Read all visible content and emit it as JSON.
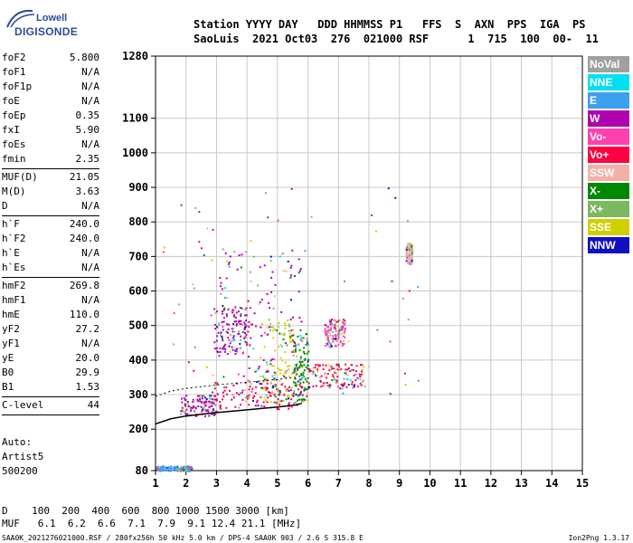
{
  "logo": {
    "line1": "Lowell",
    "line2": "DIGISONDE"
  },
  "header": {
    "line1": "Station YYYY DAY   DDD HHMMSS P1   FFS  S  AXN  PPS  IGA  PS",
    "line2": "SaoLuis  2021 Oct03  276  021000 RSF      1  715  100  00-  11"
  },
  "params": {
    "group1": [
      {
        "k": "foF2",
        "v": "5.800"
      },
      {
        "k": "foF1",
        "v": "N/A"
      },
      {
        "k": "foF1p",
        "v": "N/A"
      },
      {
        "k": "foE",
        "v": "N/A"
      },
      {
        "k": "foEp",
        "v": "0.35"
      },
      {
        "k": "fxI",
        "v": "5.90"
      },
      {
        "k": "foEs",
        "v": "N/A"
      },
      {
        "k": "fmin",
        "v": "2.35"
      }
    ],
    "group2": [
      {
        "k": "MUF(D)",
        "v": "21.05"
      },
      {
        "k": "M(D)",
        "v": "3.63"
      },
      {
        "k": "D",
        "v": "N/A"
      }
    ],
    "group3": [
      {
        "k": "h`F",
        "v": "240.0"
      },
      {
        "k": "h`F2",
        "v": "240.0"
      },
      {
        "k": "h`E",
        "v": "N/A"
      },
      {
        "k": "h`Es",
        "v": "N/A"
      }
    ],
    "group4": [
      {
        "k": "hmF2",
        "v": "269.8"
      },
      {
        "k": "hmF1",
        "v": "N/A"
      },
      {
        "k": "hmE",
        "v": "110.0"
      },
      {
        "k": "yF2",
        "v": "27.2"
      },
      {
        "k": "yF1",
        "v": "N/A"
      },
      {
        "k": "yE",
        "v": "20.0"
      },
      {
        "k": "B0",
        "v": "29.9"
      },
      {
        "k": "B1",
        "v": "1.53"
      }
    ],
    "group5": [
      {
        "k": "C-level",
        "v": "44"
      }
    ]
  },
  "auto": {
    "line1": "Auto:",
    "line2": "Artist5",
    "line3": "500200"
  },
  "legend": [
    {
      "label": "NoVal",
      "color": "#a0a0a0"
    },
    {
      "label": "NNE",
      "color": "#00e0f0"
    },
    {
      "label": "E",
      "color": "#3ca0f0"
    },
    {
      "label": "W",
      "color": "#b000b0"
    },
    {
      "label": "Vo-",
      "color": "#ff40b0"
    },
    {
      "label": "Vo+",
      "color": "#ff0040"
    },
    {
      "label": "SSW",
      "color": "#f4b0a8"
    },
    {
      "label": "X-",
      "color": "#008800"
    },
    {
      "label": "X+",
      "color": "#7cb860"
    },
    {
      "label": "SSE",
      "color": "#d0d000"
    },
    {
      "label": "NNW",
      "color": "#1010c0"
    }
  ],
  "footer": {
    "line1": "D    100  200  400  600  800 1000 1500 3000 [km]",
    "line2": "MUF   6.1  6.2  6.6  7.1  7.9  9.1 12.4 21.1 [MHz]",
    "line3": "SAA0K_2021276021000.RSF / 280fx256h 50 kHz 5.0 km / DPS-4 SAA0K 903 / 2.6 S 315.8 E",
    "version": "Ion2Png 1.3.17"
  },
  "chart_data": {
    "type": "scatter",
    "title": "",
    "xlabel": "",
    "ylabel": "",
    "xlim": [
      1,
      15
    ],
    "ylim": [
      80,
      1280
    ],
    "x_ticks": [
      1,
      2,
      3,
      4,
      5,
      6,
      7,
      8,
      9,
      10,
      11,
      12,
      13,
      14,
      15
    ],
    "y_ticks": [
      80,
      200,
      300,
      400,
      500,
      600,
      700,
      800,
      900,
      1000,
      1100,
      1280
    ],
    "grid": true,
    "trace": {
      "name": "",
      "x": [
        1.0,
        1.5,
        2.0,
        2.5,
        3.0,
        3.5,
        4.0,
        4.5,
        5.0,
        5.3,
        5.6,
        5.8
      ],
      "y": [
        215,
        230,
        238,
        243,
        248,
        252,
        256,
        260,
        264,
        267,
        270,
        275
      ]
    },
    "blobs": [
      {
        "x": [
          1.8,
          3.0
        ],
        "y": [
          240,
          300
        ],
        "w": "#b000b0"
      },
      {
        "x": [
          2.9,
          5.8
        ],
        "y": [
          260,
          340
        ],
        "w": "#ff0040"
      },
      {
        "x": [
          2.9,
          4.0
        ],
        "y": [
          420,
          560
        ],
        "w": "#b000b0"
      },
      {
        "x": [
          4.4,
          5.5
        ],
        "y": [
          280,
          520
        ],
        "w": "#d0d000"
      },
      {
        "x": [
          5.5,
          6.0
        ],
        "y": [
          280,
          480
        ],
        "w": "#008800"
      },
      {
        "x": [
          6.0,
          7.8
        ],
        "y": [
          320,
          390
        ],
        "w": "#ff0040"
      },
      {
        "x": [
          3.0,
          5.8
        ],
        "y": [
          300,
          720
        ],
        "w": "#b000b0"
      },
      {
        "x": [
          1.0,
          2.2
        ],
        "y": [
          80,
          95
        ],
        "w": "#3ca0f0"
      },
      {
        "x": [
          6.5,
          7.2
        ],
        "y": [
          440,
          520
        ],
        "w": "#ff40b0"
      },
      {
        "x": [
          9.2,
          9.4
        ],
        "y": [
          680,
          740
        ],
        "w": "#f4b0a8"
      }
    ]
  }
}
